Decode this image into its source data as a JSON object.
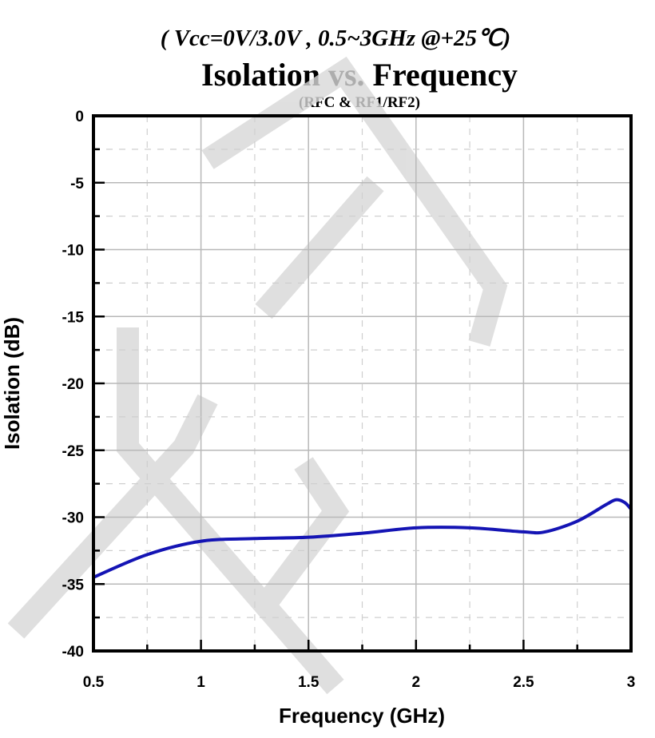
{
  "chart_data": {
    "type": "line",
    "subtitle_top": "( Vcc=0V/3.0V , 0.5~3GHz @+25℃)",
    "title": "Isolation vs. Frequency",
    "subtitle": "(RFC & RF1/RF2)",
    "xlabel": "Frequency (GHz)",
    "ylabel": "Isolation (dB)",
    "xlim": [
      0.5,
      3
    ],
    "ylim": [
      -40,
      0
    ],
    "xticks": [
      "0.5",
      "1",
      "1.5",
      "2",
      "2.5",
      "3"
    ],
    "yticks": [
      "0",
      "-5",
      "-10",
      "-15",
      "-20",
      "-25",
      "-30",
      "-35",
      "-40"
    ],
    "grid": true,
    "series": [
      {
        "name": "Isolation",
        "color": "#1414b4",
        "x": [
          0.5,
          0.75,
          1.0,
          1.25,
          1.5,
          1.75,
          2.0,
          2.25,
          2.5,
          2.6,
          2.75,
          2.88,
          2.93,
          2.97,
          3.0
        ],
        "y": [
          -34.5,
          -32.8,
          -31.8,
          -31.6,
          -31.5,
          -31.2,
          -30.8,
          -30.8,
          -31.1,
          -31.1,
          -30.3,
          -29.1,
          -28.7,
          -28.9,
          -29.4
        ]
      }
    ]
  }
}
